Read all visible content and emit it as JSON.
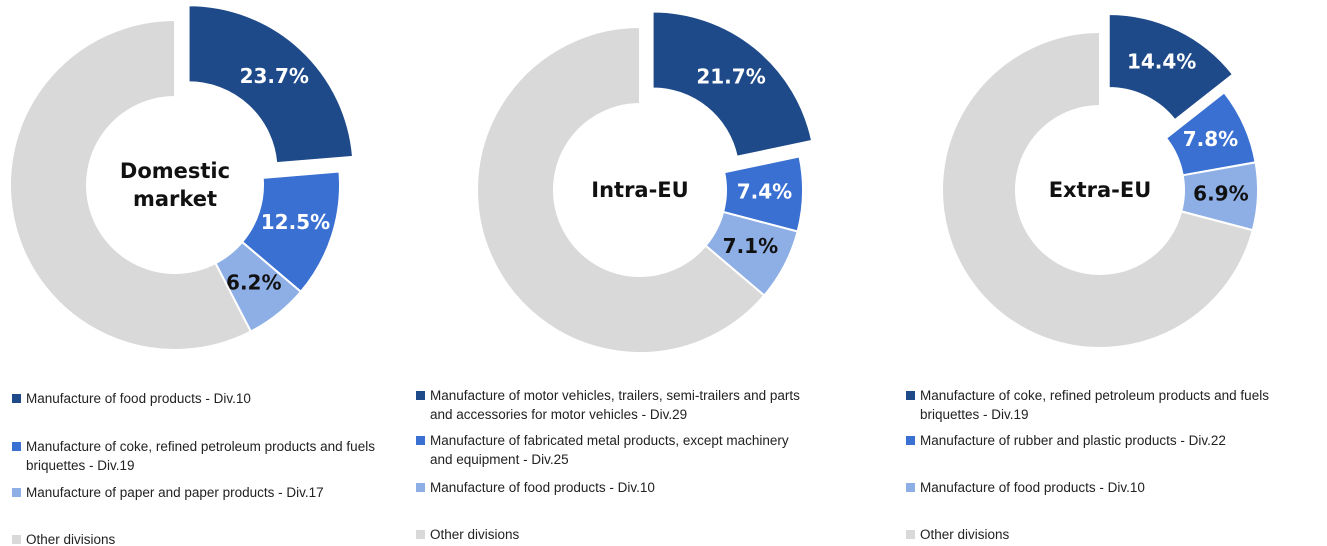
{
  "chart_data": [
    {
      "type": "donut",
      "title": "Domestic market",
      "categories": [
        "Manufacture of food products - Div.10",
        "Manufacture of coke, refined petroleum products and fuels briquettes - Div.19",
        "Manufacture of paper and paper products - Div.17",
        "Other divisions"
      ],
      "values": [
        23.7,
        12.5,
        6.2,
        57.6
      ],
      "value_labels": [
        "23.7%",
        "12.5%",
        "6.2%",
        null
      ],
      "colors": [
        "#1f4a8a",
        "#3a70d2",
        "#8eafe6",
        "#d9d9d9"
      ]
    },
    {
      "type": "donut",
      "title": "Intra-EU",
      "categories": [
        "Manufacture of motor vehicles, trailers, semi-trailers and parts and accessories for motor vehicles - Div.29",
        "Manufacture of fabricated metal products, except machinery and equipment - Div.25",
        "Manufacture of food products - Div.10",
        "Other divisions"
      ],
      "values": [
        21.7,
        7.4,
        7.1,
        63.8
      ],
      "value_labels": [
        "21.7%",
        "7.4%",
        "7.1%",
        null
      ],
      "colors": [
        "#1f4a8a",
        "#3a70d2",
        "#8eafe6",
        "#d9d9d9"
      ]
    },
    {
      "type": "donut",
      "title": "Extra-EU",
      "categories": [
        "Manufacture of coke, refined petroleum products and fuels briquettes - Div.19",
        "Manufacture of rubber and plastic products - Div.22",
        "Manufacture of food products - Div.10",
        "Other divisions"
      ],
      "values": [
        14.4,
        7.8,
        6.9,
        70.9
      ],
      "value_labels": [
        "14.4%",
        "7.8%",
        "6.9%",
        null
      ],
      "colors": [
        "#1f4a8a",
        "#3a70d2",
        "#8eafe6",
        "#d9d9d9"
      ]
    }
  ]
}
